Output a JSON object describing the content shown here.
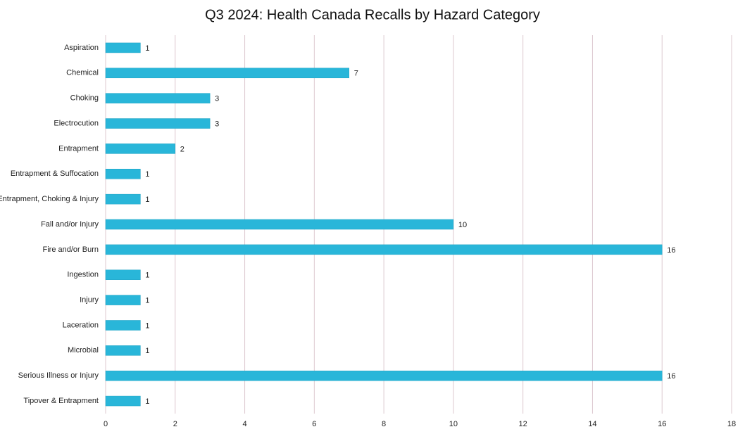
{
  "chart_data": {
    "type": "bar",
    "orientation": "horizontal",
    "title": "Q3 2024: Health Canada Recalls by Hazard Category",
    "categories": [
      "Aspiration",
      "Chemical",
      "Choking",
      "Electrocution",
      "Entrapment",
      "Entrapment & Suffocation",
      "Entrapment, Choking & Injury",
      "Fall and/or Injury",
      "Fire and/or Burn",
      "Ingestion",
      "Injury",
      "Laceration",
      "Microbial",
      "Serious Illness or Injury",
      "Tipover & Entrapment"
    ],
    "values": [
      1,
      7,
      3,
      3,
      2,
      1,
      1,
      10,
      16,
      1,
      1,
      1,
      1,
      16,
      1
    ],
    "color": "#29b6d9",
    "xlim": [
      0,
      18
    ],
    "xticks": [
      0,
      2,
      4,
      6,
      8,
      10,
      12,
      14,
      16,
      18
    ],
    "grid": true
  }
}
